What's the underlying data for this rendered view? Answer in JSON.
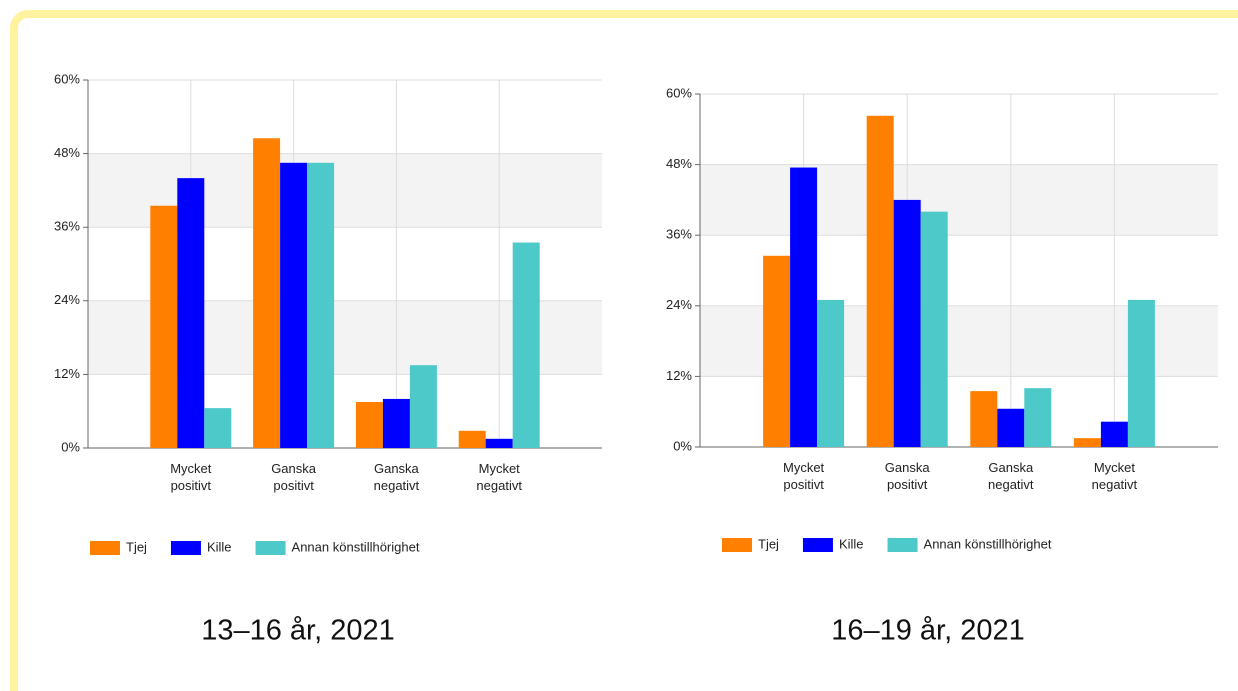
{
  "chart_data": [
    {
      "type": "bar",
      "caption": "13–16 år, 2021",
      "categories": [
        "Mycket positivt",
        "Ganska positivt",
        "Ganska negativt",
        "Mycket negativt"
      ],
      "series": [
        {
          "name": "Tjej",
          "color": "#ff7f00",
          "values": [
            39.5,
            50.5,
            7.5,
            2.8
          ]
        },
        {
          "name": "Kille",
          "color": "#0000ff",
          "values": [
            44,
            46.5,
            8,
            1.5
          ]
        },
        {
          "name": "Annan könstillhörighet",
          "color": "#4dc9c9",
          "values": [
            6.5,
            46.5,
            13.5,
            33.5
          ]
        }
      ],
      "ylim": [
        0,
        60
      ],
      "yticks": [
        {
          "value": 0,
          "label": "0%"
        },
        {
          "value": 12,
          "label": "12%"
        },
        {
          "value": 24,
          "label": "24%"
        },
        {
          "value": 36,
          "label": "36%"
        },
        {
          "value": 48,
          "label": "48%"
        },
        {
          "value": 60,
          "label": "60%"
        }
      ],
      "grid": true,
      "legend": "bottom"
    },
    {
      "type": "bar",
      "caption": "16–19 år, 2021",
      "categories": [
        "Mycket positivt",
        "Ganska positivt",
        "Ganska negativt",
        "Mycket negativt"
      ],
      "series": [
        {
          "name": "Tjej",
          "color": "#ff7f00",
          "values": [
            32.5,
            56.3,
            9.5,
            1.5
          ]
        },
        {
          "name": "Kille",
          "color": "#0000ff",
          "values": [
            47.5,
            42,
            6.5,
            4.3
          ]
        },
        {
          "name": "Annan könstillhörighet",
          "color": "#4dc9c9",
          "values": [
            25,
            40,
            10,
            25
          ]
        }
      ],
      "ylim": [
        0,
        60
      ],
      "yticks": [
        {
          "value": 0,
          "label": "0%"
        },
        {
          "value": 12,
          "label": "12%"
        },
        {
          "value": 24,
          "label": "24%"
        },
        {
          "value": 36,
          "label": "36%"
        },
        {
          "value": 48,
          "label": "48%"
        },
        {
          "value": 60,
          "label": "60%"
        }
      ],
      "grid": true,
      "legend": "bottom"
    }
  ]
}
